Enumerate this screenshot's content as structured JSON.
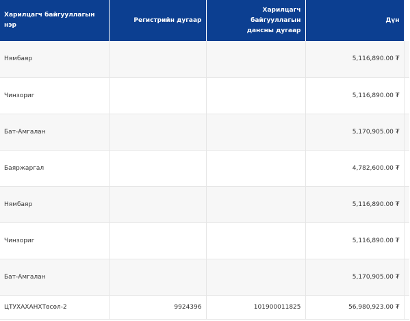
{
  "table": {
    "headers": {
      "name": "Харилцагч байгууллагын нэр",
      "register": "Регистрийн дугаар",
      "account_line1": "Харилцагч байгууллагын",
      "account_line2": "дансны дугаар",
      "amount": "Дүн"
    },
    "rows": [
      {
        "name": "Нямбаяр",
        "register": "",
        "account": "",
        "amount": "5,116,890.00 ₮"
      },
      {
        "name": "Чинзориг",
        "register": "",
        "account": "",
        "amount": "5,116,890.00 ₮"
      },
      {
        "name": "Бат-Амгалан",
        "register": "",
        "account": "",
        "amount": "5,170,905.00 ₮"
      },
      {
        "name": "Баяржаргал",
        "register": "",
        "account": "",
        "amount": "4,782,600.00 ₮"
      },
      {
        "name": "Нямбаяр",
        "register": "",
        "account": "",
        "amount": "5,116,890.00 ₮"
      },
      {
        "name": "Чинзориг",
        "register": "",
        "account": "",
        "amount": "5,116,890.00 ₮"
      },
      {
        "name": "Бат-Амгалан",
        "register": "",
        "account": "",
        "amount": "5,170,905.00 ₮"
      },
      {
        "name": "ЦТУХАХАНХТөсөл-2",
        "register": "9924396",
        "account": "101900011825",
        "amount": "56,980,923.00 ₮"
      }
    ]
  },
  "colors": {
    "header_bg": "#0c3f91",
    "header_text": "#ffffff",
    "row_alt_bg": "#f7f7f7",
    "border": "#e6e6e6"
  }
}
